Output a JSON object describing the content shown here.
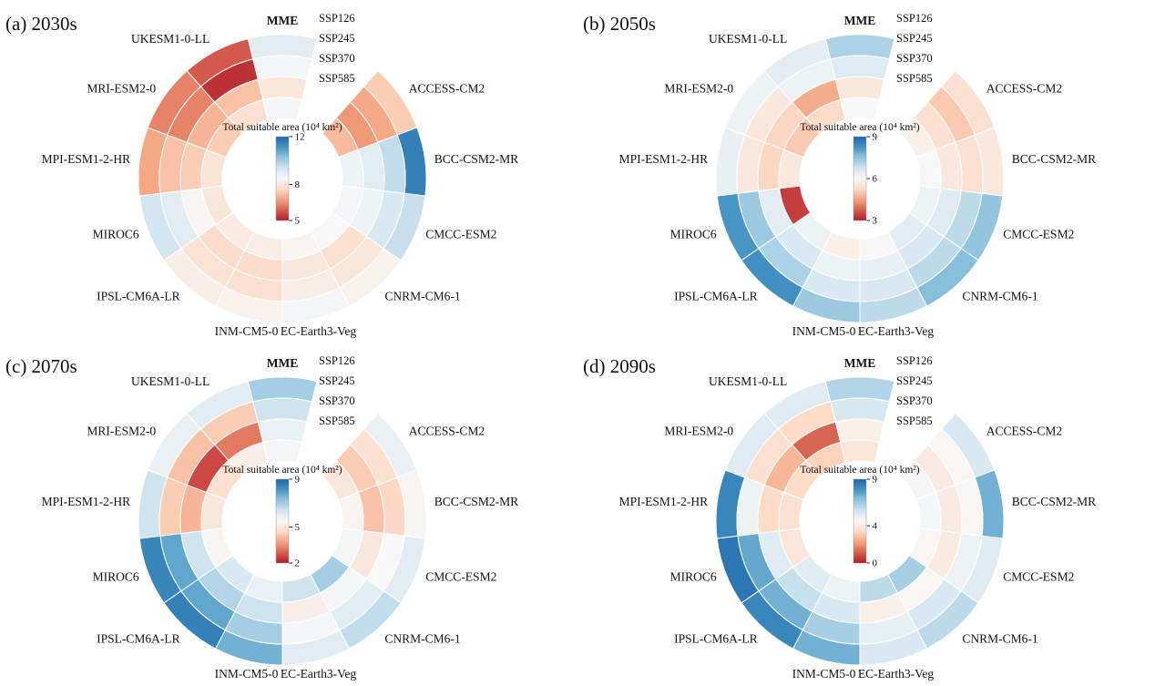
{
  "figure": {
    "background": "#ffffff",
    "colors": {
      "palette_rdbu": [
        "#b2182b",
        "#d6604d",
        "#f4a582",
        "#fddbc7",
        "#f7f7f7",
        "#d1e5f0",
        "#92c5de",
        "#4393c3",
        "#2166ac"
      ],
      "cell_border": "#ffffff",
      "text": "#111111"
    }
  },
  "chart_data": [
    {
      "id": "a",
      "type": "heatmap",
      "layout": "circular-rings",
      "panel": "(a)",
      "title": "2030s",
      "rings": [
        "SSP126",
        "SSP245",
        "SSP370",
        "SSP585"
      ],
      "colorbar": {
        "title": "Total suitable area (10⁴ km²)",
        "vmin": 5,
        "vmax": 12,
        "ticks": [
          12,
          8,
          5
        ]
      },
      "categories": [
        "MME",
        "ACCESS-CM2",
        "BCC-CSM2-MR",
        "CMCC-ESM2",
        "CNRM-CM6-1",
        "EC-Earth3-Veg",
        "INM-CM5-0",
        "IPSL-CM6A-LR",
        "MIROC6",
        "MPI-ESM1-2-HR",
        "MRI-ESM2-0",
        "UKESM1-0-LL"
      ],
      "series": [
        {
          "name": "MME",
          "values": [
            9.0,
            8.6,
            8.0,
            8.6
          ]
        },
        {
          "name": "ACCESS-CM2",
          "values": [
            7.4,
            6.8,
            6.6,
            7.1
          ]
        },
        {
          "name": "BCC-CSM2-MR",
          "values": [
            11.5,
            9.6,
            9.0,
            8.7
          ]
        },
        {
          "name": "CMCC-ESM2",
          "values": [
            9.5,
            9.2,
            8.7,
            8.6
          ]
        },
        {
          "name": "CNRM-CM6-1",
          "values": [
            8.3,
            8.0,
            7.8,
            8.5
          ]
        },
        {
          "name": "EC-Earth3-Veg",
          "values": [
            8.6,
            8.2,
            8.0,
            8.4
          ]
        },
        {
          "name": "INM-CM5-0",
          "values": [
            8.3,
            7.8,
            7.7,
            8.2
          ]
        },
        {
          "name": "IPSL-CM6A-LR",
          "values": [
            8.2,
            7.9,
            7.7,
            8.1
          ]
        },
        {
          "name": "MIROC6",
          "values": [
            9.3,
            9.0,
            8.4,
            8.0
          ]
        },
        {
          "name": "MPI-ESM1-2-HR",
          "values": [
            6.8,
            7.2,
            7.4,
            7.9
          ]
        },
        {
          "name": "MRI-ESM2-0",
          "values": [
            6.3,
            6.3,
            7.0,
            7.4
          ]
        },
        {
          "name": "UKESM1-0-LL",
          "values": [
            5.8,
            5.3,
            7.2,
            7.8
          ]
        }
      ]
    },
    {
      "id": "b",
      "type": "heatmap",
      "layout": "circular-rings",
      "panel": "(b)",
      "title": "2050s",
      "rings": [
        "SSP126",
        "SSP245",
        "SSP370",
        "SSP585"
      ],
      "colorbar": {
        "title": "Total suitable area (10⁴ km²)",
        "vmin": 3,
        "vmax": 9,
        "ticks": [
          9,
          6,
          3
        ]
      },
      "categories": [
        "MME",
        "ACCESS-CM2",
        "BCC-CSM2-MR",
        "CMCC-ESM2",
        "CNRM-CM6-1",
        "EC-Earth3-Veg",
        "INM-CM5-0",
        "IPSL-CM6A-LR",
        "MIROC6",
        "MPI-ESM1-2-HR",
        "MRI-ESM2-0",
        "UKESM1-0-LL"
      ],
      "series": [
        {
          "name": "MME",
          "values": [
            7.2,
            6.5,
            5.6,
            6.0
          ]
        },
        {
          "name": "ACCESS-CM2",
          "values": [
            5.4,
            5.0,
            5.4,
            5.8
          ]
        },
        {
          "name": "BCC-CSM2-MR",
          "values": [
            5.6,
            5.4,
            5.6,
            6.0
          ]
        },
        {
          "name": "CMCC-ESM2",
          "values": [
            7.5,
            7.0,
            6.5,
            6.2
          ]
        },
        {
          "name": "CNRM-CM6-1",
          "values": [
            7.6,
            7.0,
            6.6,
            6.4
          ]
        },
        {
          "name": "EC-Earth3-Veg",
          "values": [
            7.0,
            6.6,
            6.3,
            6.0
          ]
        },
        {
          "name": "INM-CM5-0",
          "values": [
            7.4,
            6.6,
            6.2,
            5.8
          ]
        },
        {
          "name": "IPSL-CM6A-LR",
          "values": [
            8.3,
            7.2,
            6.6,
            6.2
          ]
        },
        {
          "name": "MIROC6",
          "values": [
            8.2,
            7.4,
            6.4,
            3.4
          ]
        },
        {
          "name": "MPI-ESM1-2-HR",
          "values": [
            6.3,
            5.6,
            5.2,
            5.6
          ]
        },
        {
          "name": "MRI-ESM2-0",
          "values": [
            6.2,
            5.6,
            5.2,
            5.0
          ]
        },
        {
          "name": "UKESM1-0-LL",
          "values": [
            6.4,
            6.2,
            4.6,
            5.3
          ]
        }
      ]
    },
    {
      "id": "c",
      "type": "heatmap",
      "layout": "circular-rings",
      "panel": "(c)",
      "title": "2070s",
      "rings": [
        "SSP126",
        "SSP245",
        "SSP370",
        "SSP585"
      ],
      "colorbar": {
        "title": "Total suitable area (10⁴ km²)",
        "vmin": 2,
        "vmax": 9,
        "ticks": [
          9,
          5,
          2
        ]
      },
      "categories": [
        "MME",
        "ACCESS-CM2",
        "BCC-CSM2-MR",
        "CMCC-ESM2",
        "CNRM-CM6-1",
        "EC-Earth3-Veg",
        "INM-CM5-0",
        "IPSL-CM6A-LR",
        "MIROC6",
        "MPI-ESM1-2-HR",
        "MRI-ESM2-0",
        "UKESM1-0-LL"
      ],
      "series": [
        {
          "name": "MME",
          "values": [
            7.0,
            6.4,
            5.8,
            5.6
          ]
        },
        {
          "name": "ACCESS-CM2",
          "values": [
            5.8,
            4.8,
            4.4,
            5.0
          ]
        },
        {
          "name": "BCC-CSM2-MR",
          "values": [
            5.4,
            4.6,
            4.2,
            5.4
          ]
        },
        {
          "name": "CMCC-ESM2",
          "values": [
            6.0,
            5.5,
            5.0,
            5.6
          ]
        },
        {
          "name": "CNRM-CM6-1",
          "values": [
            6.6,
            6.0,
            5.6,
            7.0
          ]
        },
        {
          "name": "EC-Earth3-Veg",
          "values": [
            6.0,
            5.6,
            5.2,
            6.4
          ]
        },
        {
          "name": "INM-CM5-0",
          "values": [
            7.6,
            7.0,
            6.4,
            5.8
          ]
        },
        {
          "name": "IPSL-CM6A-LR",
          "values": [
            8.5,
            7.8,
            6.8,
            6.2
          ]
        },
        {
          "name": "MIROC6",
          "values": [
            8.4,
            7.8,
            6.4,
            5.4
          ]
        },
        {
          "name": "MPI-ESM1-2-HR",
          "values": [
            6.4,
            4.4,
            4.0,
            5.0
          ]
        },
        {
          "name": "MRI-ESM2-0",
          "values": [
            5.8,
            4.2,
            2.6,
            4.8
          ]
        },
        {
          "name": "UKESM1-0-LL",
          "values": [
            6.0,
            4.4,
            3.2,
            5.2
          ]
        }
      ]
    },
    {
      "id": "d",
      "type": "heatmap",
      "layout": "circular-rings",
      "panel": "(d)",
      "title": "2090s",
      "rings": [
        "SSP126",
        "SSP245",
        "SSP370",
        "SSP585"
      ],
      "colorbar": {
        "title": "Total suitable area (10⁴ km²)",
        "vmin": 0,
        "vmax": 9,
        "ticks": [
          9,
          4,
          0
        ]
      },
      "categories": [
        "MME",
        "ACCESS-CM2",
        "BCC-CSM2-MR",
        "CMCC-ESM2",
        "CNRM-CM6-1",
        "EC-Earth3-Veg",
        "INM-CM5-0",
        "IPSL-CM6A-LR",
        "MIROC6",
        "MPI-ESM1-2-HR",
        "MRI-ESM2-0",
        "UKESM1-0-LL"
      ],
      "series": [
        {
          "name": "MME",
          "values": [
            6.2,
            5.4,
            4.2,
            3.8
          ]
        },
        {
          "name": "ACCESS-CM2",
          "values": [
            5.4,
            4.4,
            4.0,
            4.6
          ]
        },
        {
          "name": "BCC-CSM2-MR",
          "values": [
            7.2,
            4.4,
            4.0,
            4.6
          ]
        },
        {
          "name": "CMCC-ESM2",
          "values": [
            5.2,
            4.8,
            4.0,
            4.4
          ]
        },
        {
          "name": "CNRM-CM6-1",
          "values": [
            6.0,
            5.4,
            4.4,
            6.4
          ]
        },
        {
          "name": "EC-Earth3-Veg",
          "values": [
            5.4,
            5.0,
            4.2,
            6.0
          ]
        },
        {
          "name": "INM-CM5-0",
          "values": [
            7.2,
            6.4,
            5.4,
            4.8
          ]
        },
        {
          "name": "IPSL-CM6A-LR",
          "values": [
            8.2,
            7.2,
            5.8,
            5.2
          ]
        },
        {
          "name": "MIROC6",
          "values": [
            8.6,
            7.4,
            5.2,
            3.8
          ]
        },
        {
          "name": "MPI-ESM1-2-HR",
          "values": [
            8.2,
            4.8,
            3.4,
            3.6
          ]
        },
        {
          "name": "MRI-ESM2-0",
          "values": [
            5.2,
            3.6,
            2.6,
            3.4
          ]
        },
        {
          "name": "UKESM1-0-LL",
          "values": [
            5.2,
            3.4,
            1.2,
            3.2
          ]
        }
      ]
    }
  ]
}
